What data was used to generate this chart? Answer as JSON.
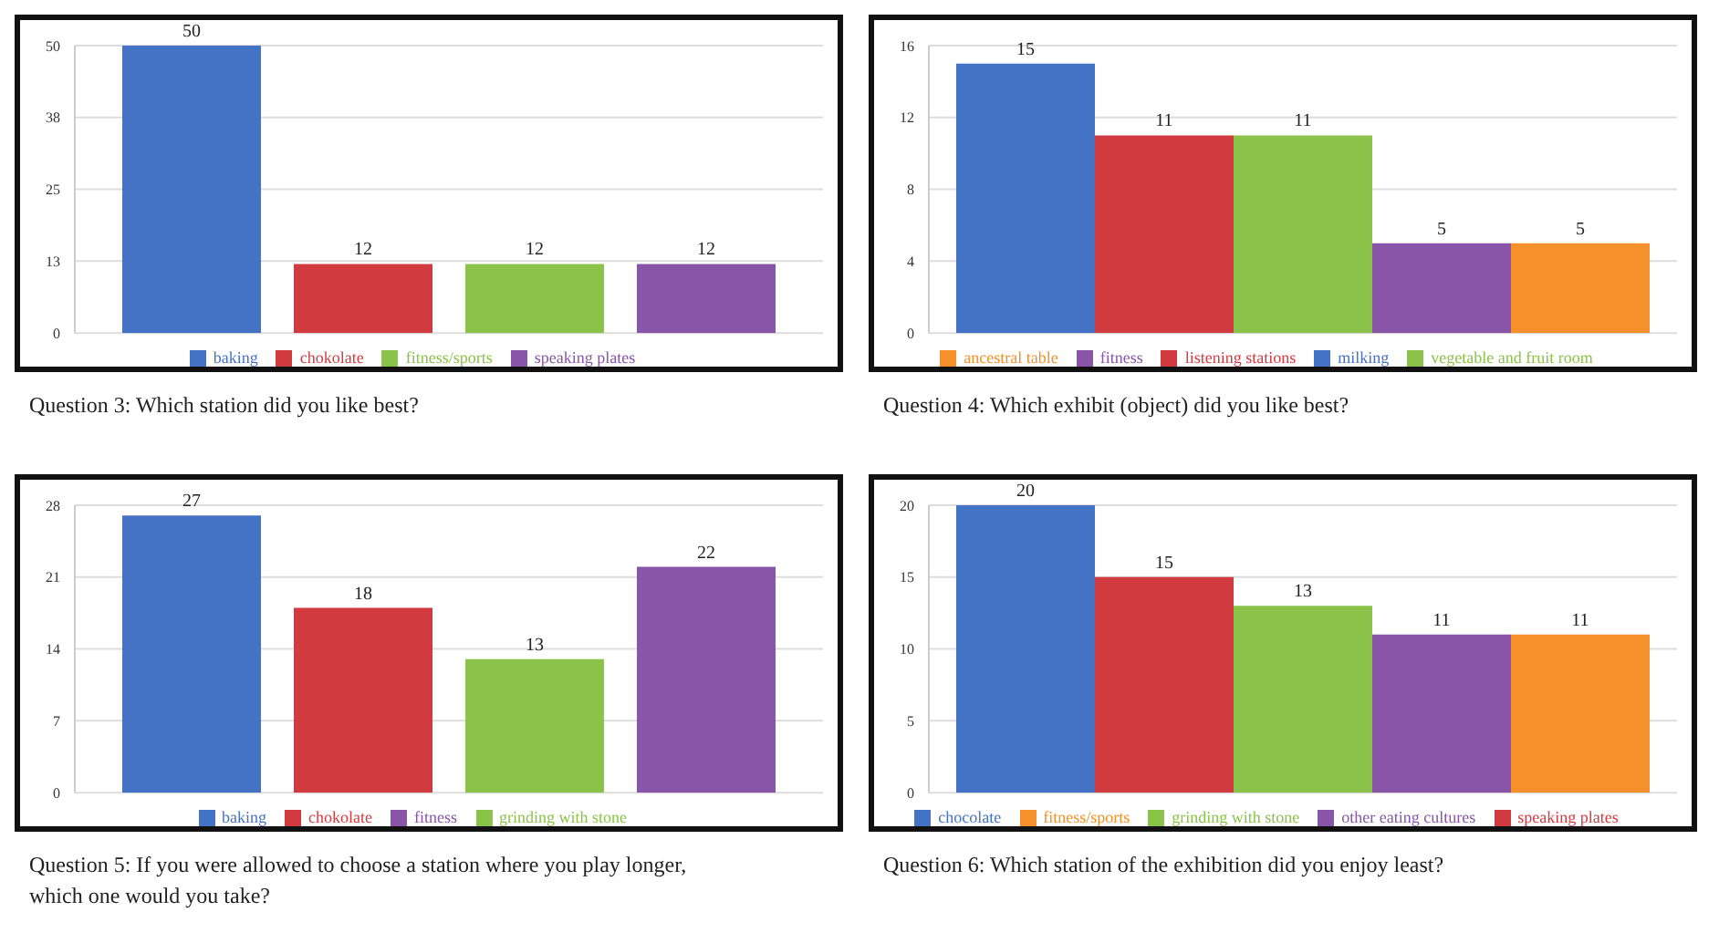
{
  "chart_data": [
    {
      "type": "bar",
      "title": "Question 3: Which station did you like best?",
      "categories": [
        null
      ],
      "series": [
        {
          "name": "baking",
          "color": "#4472c4",
          "values": [
            50
          ]
        },
        {
          "name": "chokolate",
          "color": "#d13b40",
          "values": [
            12
          ]
        },
        {
          "name": "fitness/sports",
          "color": "#8bc34a",
          "values": [
            12
          ]
        },
        {
          "name": "speaking plates",
          "color": "#8855a8",
          "values": [
            12
          ]
        }
      ],
      "ylim": [
        0,
        50
      ],
      "yticks": [
        0,
        {
          "value": 12.5,
          "label": "13"
        },
        25,
        {
          "value": 37.5,
          "label": "38"
        },
        50
      ],
      "grid": "y",
      "legend": "bottom",
      "data_labels": true
    },
    {
      "type": "bar",
      "title": "Question 4: Which exhibit (object) did you like best?",
      "categories": [
        null
      ],
      "series": [
        {
          "name": "milking",
          "color": "#4472c4",
          "values": [
            15
          ]
        },
        {
          "name": "listening stations",
          "color": "#d13b40",
          "values": [
            11
          ]
        },
        {
          "name": "vegetable and fruit room",
          "color": "#8bc34a",
          "values": [
            11
          ]
        },
        {
          "name": "fitness",
          "color": "#8855a8",
          "values": [
            5
          ]
        },
        {
          "name": "ancestral table",
          "color": "#f5902a",
          "values": [
            5
          ]
        }
      ],
      "ylim": [
        0,
        16
      ],
      "yticks": [
        0,
        4,
        8,
        12,
        16
      ],
      "grid": "y",
      "legend": "bottom",
      "data_labels": true
    },
    {
      "type": "bar",
      "title": "Question 5:  If you were allowed to choose a station where you play longer, which one would you take?",
      "categories": [
        null
      ],
      "series": [
        {
          "name": "baking",
          "color": "#4472c4",
          "values": [
            27
          ]
        },
        {
          "name": "chokolate",
          "color": "#d13b40",
          "values": [
            18
          ]
        },
        {
          "name": "grinding with stone",
          "color": "#8bc34a",
          "values": [
            13
          ]
        },
        {
          "name": "fitness",
          "color": "#8855a8",
          "values": [
            22
          ]
        }
      ],
      "ylim": [
        0,
        28
      ],
      "yticks": [
        0,
        7,
        14,
        21,
        28
      ],
      "grid": "y",
      "legend": "bottom",
      "data_labels": true
    },
    {
      "type": "bar",
      "title": "Question 6: Which station of the exhibition did you enjoy least?",
      "categories": [
        null
      ],
      "series": [
        {
          "name": "chocolate",
          "color": "#4472c4",
          "values": [
            20
          ]
        },
        {
          "name": "speaking plates",
          "color": "#d13b40",
          "values": [
            15
          ]
        },
        {
          "name": "grinding with stone",
          "color": "#8bc34a",
          "values": [
            13
          ]
        },
        {
          "name": "other eating cultures",
          "color": "#8855a8",
          "values": [
            11
          ]
        },
        {
          "name": "fitness/sports",
          "color": "#f5902a",
          "values": [
            11
          ]
        }
      ],
      "ylim": [
        0,
        20
      ],
      "yticks": [
        0,
        5,
        10,
        15,
        20
      ],
      "grid": "y",
      "legend": "bottom",
      "data_labels": true
    }
  ]
}
